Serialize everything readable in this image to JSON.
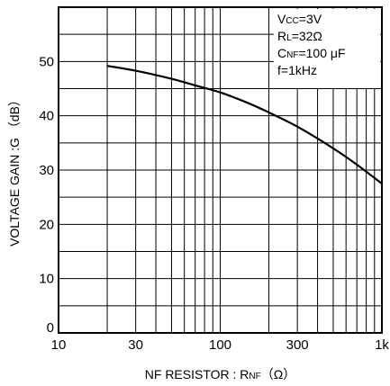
{
  "chart_data": {
    "type": "line",
    "xscale": "log",
    "xlim": [
      10,
      1000
    ],
    "ylim": [
      0,
      60
    ],
    "grid": true,
    "xlabel": "NF  RESISTOR : R",
    "xlabel_sub": "NF",
    "xlabel_unit": "（Ω）",
    "ylabel": "VOLTAGE  GAIN :G （dB）",
    "x_ticks": [
      {
        "value": 10,
        "label": "10"
      },
      {
        "value": 30,
        "label": "30"
      },
      {
        "value": 100,
        "label": "100"
      },
      {
        "value": 300,
        "label": "300"
      },
      {
        "value": 1000,
        "label": "1k"
      }
    ],
    "y_ticks": [
      {
        "value": 0,
        "label": "0"
      },
      {
        "value": 10,
        "label": "10"
      },
      {
        "value": 20,
        "label": "20"
      },
      {
        "value": 30,
        "label": "30"
      },
      {
        "value": 40,
        "label": "40"
      },
      {
        "value": 50,
        "label": "50"
      }
    ],
    "conditions": [
      {
        "main": "V",
        "sub": "CC",
        "rest": "=3V"
      },
      {
        "main": "R",
        "sub": "L",
        "rest": "=32Ω"
      },
      {
        "main": "C",
        "sub": "NF",
        "rest": "=100 μF"
      },
      {
        "main": "f",
        "sub": "",
        "rest": "=1kHz"
      }
    ],
    "series": [
      {
        "color": "#000000",
        "x": [
          20,
          30,
          50,
          70,
          100,
          150,
          200,
          300,
          500,
          700,
          1000
        ],
        "y": [
          49.2,
          48.3,
          46.8,
          45.6,
          44.3,
          42.3,
          40.6,
          38.0,
          34.0,
          31.0,
          27.5
        ]
      }
    ]
  }
}
